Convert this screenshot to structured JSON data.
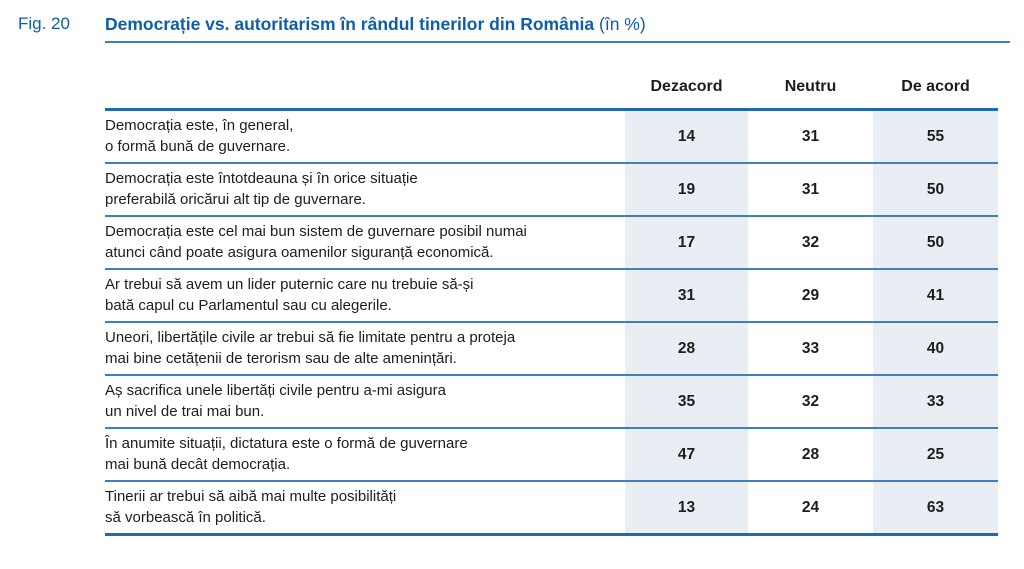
{
  "figure": {
    "label": "Fig. 20",
    "title": "Democrație vs. autoritarism în rândul tinerilor din România",
    "title_suffix": " (în %)"
  },
  "table": {
    "columns": [
      "Dezacord",
      "Neutru",
      "De acord"
    ],
    "rows": [
      {
        "line1": "Democrația este, în general,",
        "line2": "o formă bună de guvernare.",
        "values": [
          14,
          31,
          55
        ]
      },
      {
        "line1": "Democrația este întotdeauna și în orice situație",
        "line2": "preferabilă oricărui alt tip de guvernare.",
        "values": [
          19,
          31,
          50
        ]
      },
      {
        "line1": "Democrația este cel mai bun sistem de guvernare posibil numai",
        "line2": "atunci când poate asigura oamenilor siguranță economică.",
        "values": [
          17,
          32,
          50
        ]
      },
      {
        "line1": "Ar trebui să avem un lider puternic care nu trebuie să-și",
        "line2": "bată capul cu Parlamentul sau cu alegerile.",
        "values": [
          31,
          29,
          41
        ]
      },
      {
        "line1": "Uneori, libertățile civile ar trebui să fie limitate pentru a proteja",
        "line2": "mai bine cetățenii de terorism sau de alte amenințări.",
        "values": [
          28,
          33,
          40
        ]
      },
      {
        "line1": "Aș sacrifica unele libertăți civile pentru a-mi asigura",
        "line2": "un nivel de trai mai bun.",
        "values": [
          35,
          32,
          33
        ]
      },
      {
        "line1": "În anumite situații, dictatura este o formă de guvernare",
        "line2": "mai bună decât democrația.",
        "values": [
          47,
          28,
          25
        ]
      },
      {
        "line1": "Tinerii ar trebui să aibă mai multe posibilități",
        "line2": "să vorbească în politică.",
        "values": [
          13,
          24,
          63
        ]
      }
    ]
  },
  "chart_data": {
    "type": "table",
    "title": "Democrație vs. autoritarism în rândul tinerilor din România (în %)",
    "columns": [
      "Dezacord",
      "Neutru",
      "De acord"
    ],
    "rows": [
      {
        "statement": "Democrația este, în general, o formă bună de guvernare.",
        "values": [
          14,
          31,
          55
        ]
      },
      {
        "statement": "Democrația este întotdeauna și în orice situație preferabilă oricărui alt tip de guvernare.",
        "values": [
          19,
          31,
          50
        ]
      },
      {
        "statement": "Democrația este cel mai bun sistem de guvernare posibil numai atunci când poate asigura oamenilor siguranță economică.",
        "values": [
          17,
          32,
          50
        ]
      },
      {
        "statement": "Ar trebui să avem un lider puternic care nu trebuie să-și bată capul cu Parlamentul sau cu alegerile.",
        "values": [
          31,
          29,
          41
        ]
      },
      {
        "statement": "Uneori, libertățile civile ar trebui să fie limitate pentru a proteja mai bine cetățenii de terorism sau de alte amenințări.",
        "values": [
          28,
          33,
          40
        ]
      },
      {
        "statement": "Aș sacrifica unele libertăți civile pentru a-mi asigura un nivel de trai mai bun.",
        "values": [
          35,
          32,
          33
        ]
      },
      {
        "statement": "În anumite situații, dictatura este o formă de guvernare mai bună decât democrația.",
        "values": [
          47,
          28,
          25
        ]
      },
      {
        "statement": "Tinerii ar trebui să aibă mai multe posibilități să vorbească în politică.",
        "values": [
          13,
          24,
          63
        ]
      }
    ]
  },
  "colors": {
    "accent-blue": "#0e5ea9",
    "rule-thick": "#2268ac",
    "rule-thin": "#3f7fbc",
    "cell-shade": "#e9eef4",
    "text-dark": "#1d1d1b"
  }
}
